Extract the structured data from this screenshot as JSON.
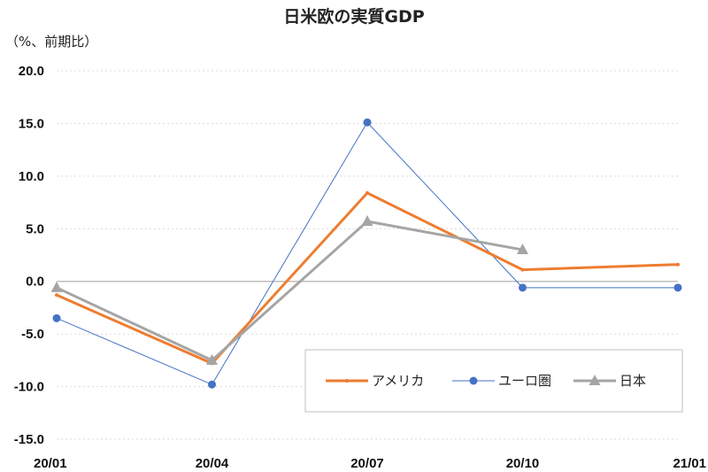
{
  "chart_data": {
    "type": "line",
    "title": "日米欧の実質GDP",
    "unit_label": "（%、前期比）",
    "x": [
      "20/01",
      "20/04",
      "20/07",
      "20/10",
      "21/01"
    ],
    "y_ticks": [
      "20.0",
      "15.0",
      "10.0",
      "5.0",
      "0.0",
      "-5.0",
      "-10.0",
      "-15.0"
    ],
    "ylim": [
      -15,
      20
    ],
    "grid": true,
    "legend_position": "bottom-right",
    "series": [
      {
        "name": "アメリカ",
        "color": "#ED7D31",
        "marker": "small-dot",
        "values": [
          -1.3,
          -7.8,
          8.4,
          1.1,
          1.6
        ]
      },
      {
        "name": "ユーロ圏",
        "color": "#4472C4",
        "marker": "circle",
        "values": [
          -3.5,
          -9.8,
          15.1,
          -0.6,
          -0.6
        ]
      },
      {
        "name": "日本",
        "color": "#A5A5A5",
        "marker": "triangle",
        "values": [
          -0.6,
          -7.5,
          5.7,
          3.0,
          null
        ]
      }
    ]
  }
}
